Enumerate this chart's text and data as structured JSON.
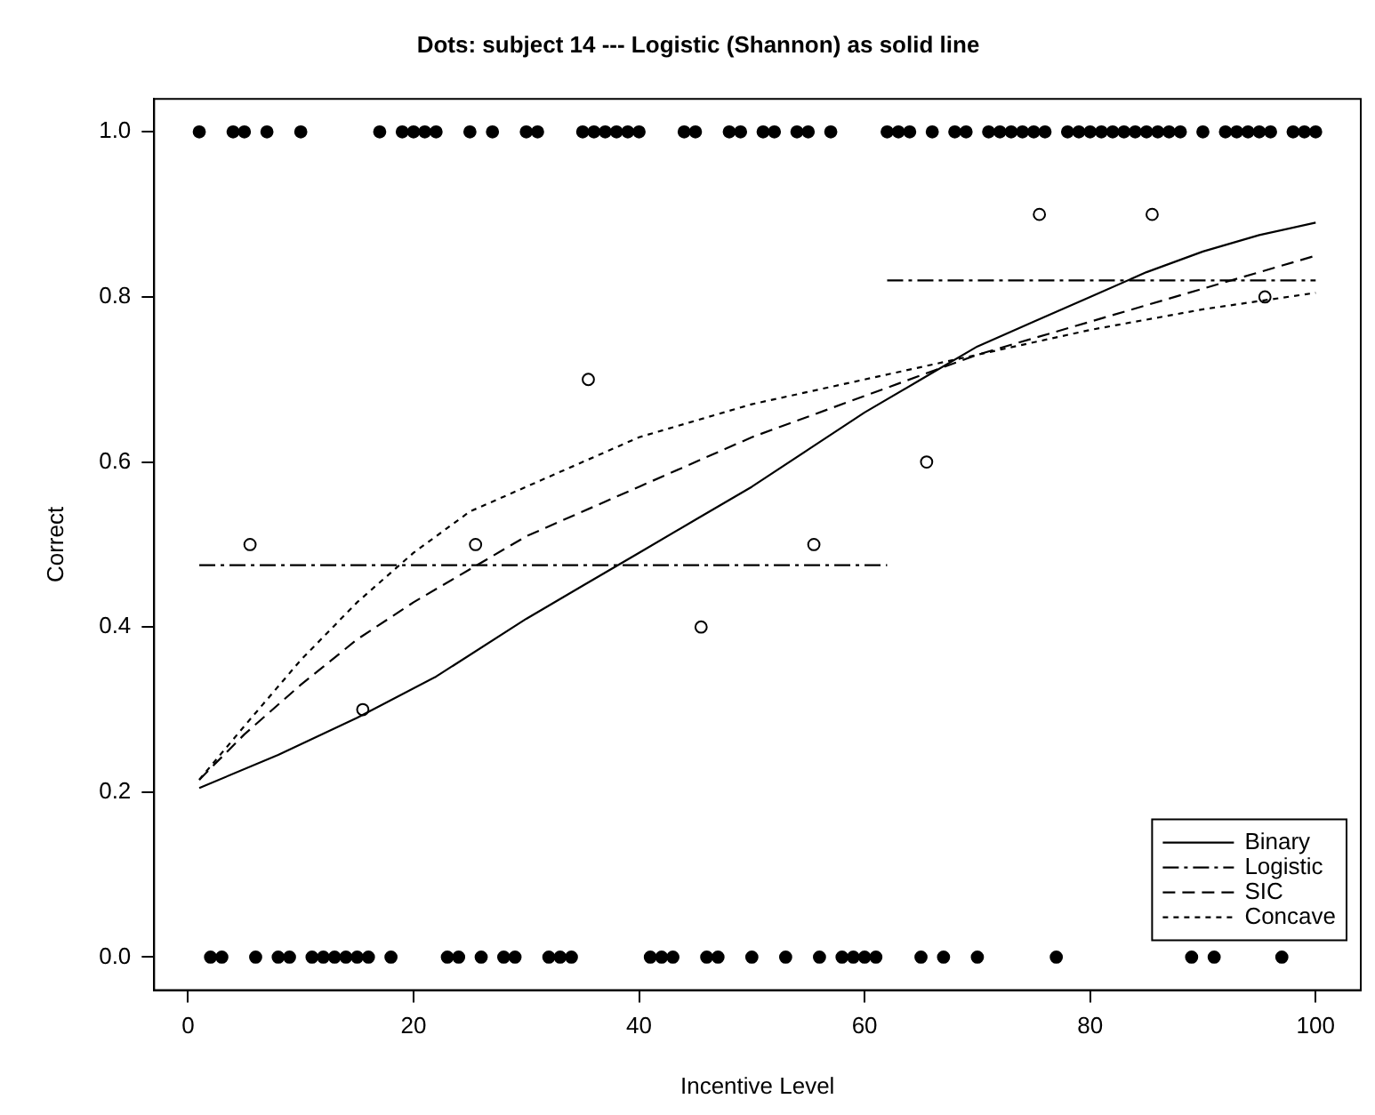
{
  "chart_data": {
    "type": "line",
    "title": "Dots: subject 14 --- Logistic (Shannon) as solid line",
    "xlabel": "Incentive Level",
    "ylabel": "Correct",
    "xlim": [
      -3,
      104
    ],
    "xticks": [
      0,
      20,
      40,
      60,
      80,
      100
    ],
    "ylim": [
      -0.04,
      1.04
    ],
    "yticks": [
      {
        "value": 0,
        "label": "0.0"
      },
      {
        "value": 0.2,
        "label": "0.2"
      },
      {
        "value": 0.4,
        "label": "0.4"
      },
      {
        "value": 0.6,
        "label": "0.6"
      },
      {
        "value": 0.8,
        "label": "0.8"
      },
      {
        "value": 1,
        "label": "1.0"
      }
    ],
    "grid": false,
    "legend": "bottom right",
    "series": [
      {
        "type": "scatter",
        "marker": "circle",
        "color": "#000000",
        "x": [
          1,
          4,
          5,
          7,
          10,
          17,
          19,
          20,
          21,
          22,
          25,
          27,
          30,
          31,
          35,
          36,
          37,
          38,
          39,
          40,
          44,
          45,
          48,
          49,
          51,
          52,
          54,
          55,
          57,
          62,
          63,
          64,
          66,
          68,
          69,
          71,
          72,
          73,
          74,
          75,
          76,
          78,
          79,
          80,
          81,
          82,
          83,
          84,
          85,
          86,
          87,
          88,
          90,
          92,
          93,
          94,
          95,
          96,
          98,
          99,
          100
        ],
        "values": [
          1,
          1,
          1,
          1,
          1,
          1,
          1,
          1,
          1,
          1,
          1,
          1,
          1,
          1,
          1,
          1,
          1,
          1,
          1,
          1,
          1,
          1,
          1,
          1,
          1,
          1,
          1,
          1,
          1,
          1,
          1,
          1,
          1,
          1,
          1,
          1,
          1,
          1,
          1,
          1,
          1,
          1,
          1,
          1,
          1,
          1,
          1,
          1,
          1,
          1,
          1,
          1,
          1,
          1,
          1,
          1,
          1,
          1,
          1,
          1,
          1
        ]
      },
      {
        "type": "scatter",
        "marker": "circle",
        "color": "#000000",
        "x": [
          2,
          3,
          6,
          8,
          9,
          11,
          12,
          13,
          14,
          15,
          16,
          18,
          23,
          24,
          26,
          28,
          29,
          32,
          33,
          34,
          41,
          42,
          43,
          46,
          47,
          50,
          53,
          56,
          58,
          59,
          60,
          61,
          65,
          67,
          70,
          77,
          89,
          91,
          97
        ],
        "values": [
          0,
          0,
          0,
          0,
          0,
          0,
          0,
          0,
          0,
          0,
          0,
          0,
          0,
          0,
          0,
          0,
          0,
          0,
          0,
          0,
          0,
          0,
          0,
          0,
          0,
          0,
          0,
          0,
          0,
          0,
          0,
          0,
          0,
          0,
          0,
          0,
          0,
          0,
          0
        ]
      },
      {
        "type": "scatter",
        "marker": "open-circle",
        "color": "#000000",
        "x": [
          5.5,
          15.5,
          25.5,
          35.5,
          45.5,
          55.5,
          65.5,
          75.5,
          85.5,
          95.5
        ],
        "values": [
          0.5,
          0.3,
          0.5,
          0.7,
          0.4,
          0.5,
          0.6,
          0.9,
          0.9,
          0.8
        ]
      },
      {
        "name": "Binary",
        "line_style": "solid",
        "color": "#000000",
        "x": [
          1,
          8,
          15,
          22,
          30,
          35,
          40,
          45,
          50,
          55,
          60,
          65,
          70,
          75,
          80,
          85,
          90,
          95,
          100
        ],
        "values": [
          0.205,
          0.245,
          0.29,
          0.34,
          0.41,
          0.45,
          0.49,
          0.53,
          0.57,
          0.615,
          0.66,
          0.7,
          0.74,
          0.77,
          0.8,
          0.83,
          0.855,
          0.875,
          0.89
        ]
      },
      {
        "name": "Logistic",
        "line_style": "dashdot",
        "color": "#000000",
        "x": [
          1,
          62
        ],
        "values": [
          0.475,
          0.475
        ]
      },
      {
        "line_style": "dashdot",
        "color": "#000000",
        "x": [
          62,
          100
        ],
        "values": [
          0.82,
          0.82
        ]
      },
      {
        "name": "SIC",
        "line_style": "dashed",
        "color": "#000000",
        "x": [
          1,
          5,
          10,
          15,
          20,
          25,
          30,
          40,
          50,
          60,
          70,
          80,
          90,
          100
        ],
        "values": [
          0.215,
          0.27,
          0.33,
          0.385,
          0.43,
          0.47,
          0.51,
          0.57,
          0.63,
          0.68,
          0.73,
          0.77,
          0.81,
          0.85
        ]
      },
      {
        "name": "Concave",
        "line_style": "dotted",
        "color": "#000000",
        "x": [
          1,
          5,
          10,
          15,
          20,
          25,
          30,
          35,
          40,
          50,
          60,
          70,
          80,
          90,
          100
        ],
        "values": [
          0.215,
          0.28,
          0.36,
          0.43,
          0.49,
          0.54,
          0.57,
          0.6,
          0.63,
          0.67,
          0.7,
          0.73,
          0.76,
          0.785,
          0.805
        ]
      }
    ]
  }
}
